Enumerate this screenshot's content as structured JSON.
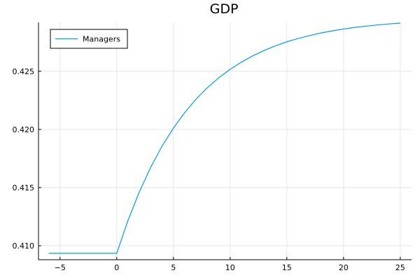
{
  "chart_data": {
    "type": "line",
    "title": "GDP",
    "xlabel": "",
    "ylabel": "",
    "xlim": [
      -6.9,
      26.0
    ],
    "ylim": [
      0.4088,
      0.4292
    ],
    "xticks": [
      -5,
      0,
      5,
      10,
      15,
      20,
      25
    ],
    "xtick_labels": [
      "−5",
      "0",
      "5",
      "10",
      "15",
      "20",
      "25"
    ],
    "yticks": [
      0.41,
      0.415,
      0.42,
      0.425
    ],
    "ytick_labels": [
      "0.410",
      "0.415",
      "0.420",
      "0.425"
    ],
    "grid": true,
    "legend_position": "top-left",
    "series": [
      {
        "name": "Managers",
        "color": "#009af9",
        "x": [
          -6,
          -5,
          -4,
          -3,
          -2,
          -1,
          0,
          1,
          2,
          3,
          4,
          5,
          6,
          7,
          8,
          9,
          10,
          11,
          12,
          13,
          14,
          15,
          16,
          17,
          18,
          19,
          20,
          21,
          22,
          23,
          24,
          25
        ],
        "y": [
          0.40935,
          0.40935,
          0.40935,
          0.40935,
          0.40935,
          0.40935,
          0.40935,
          0.4122,
          0.41465,
          0.41676,
          0.41857,
          0.42012,
          0.42146,
          0.42261,
          0.42359,
          0.42444,
          0.42517,
          0.42579,
          0.42633,
          0.42679,
          0.42719,
          0.42753,
          0.42782,
          0.42807,
          0.42829,
          0.42847,
          0.42863,
          0.42877,
          0.42888,
          0.42898,
          0.42907,
          0.42914
        ]
      }
    ]
  }
}
